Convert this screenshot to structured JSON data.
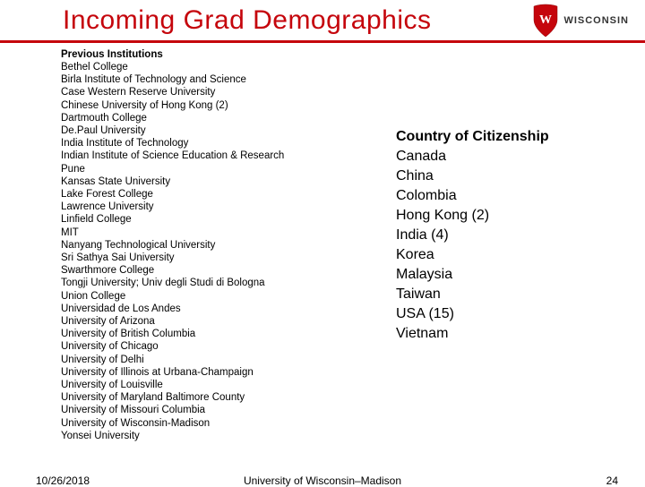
{
  "header": {
    "title": "Incoming Grad Demographics",
    "logo_text": "WISCONSIN",
    "accent_color": "#c5050c"
  },
  "institutions": {
    "header": "Previous Institutions",
    "rows": [
      "Bethel College",
      "Birla Institute of Technology and Science",
      "Case Western Reserve University",
      "Chinese University of Hong Kong (2)",
      "Dartmouth College",
      "De.Paul University",
      "India Institute of Technology",
      "Indian Institute of Science Education & Research",
      "Pune",
      "Kansas State University",
      "Lake Forest College",
      "Lawrence University",
      "Linfield College",
      "MIT",
      "Nanyang Technological University",
      "Sri Sathya Sai University",
      "Swarthmore College",
      "Tongji University; Univ degli Studi di Bologna",
      "Union College",
      "Universidad de Los Andes",
      "University of Arizona",
      "University of British Columbia",
      "University of Chicago",
      "University of Delhi",
      "University of Illinois at Urbana-Champaign",
      "University of Louisville",
      "University of Maryland Baltimore County",
      "University of Missouri Columbia",
      "University of Wisconsin-Madison",
      "Yonsei University"
    ]
  },
  "countries": {
    "header": "Country of Citizenship",
    "rows": [
      "Canada",
      "China",
      "Colombia",
      "Hong Kong (2)",
      "India (4)",
      "Korea",
      "Malaysia",
      "Taiwan",
      "USA (15)",
      "Vietnam"
    ]
  },
  "footer": {
    "date": "10/26/2018",
    "org": "University of Wisconsin–Madison",
    "page": "24"
  }
}
